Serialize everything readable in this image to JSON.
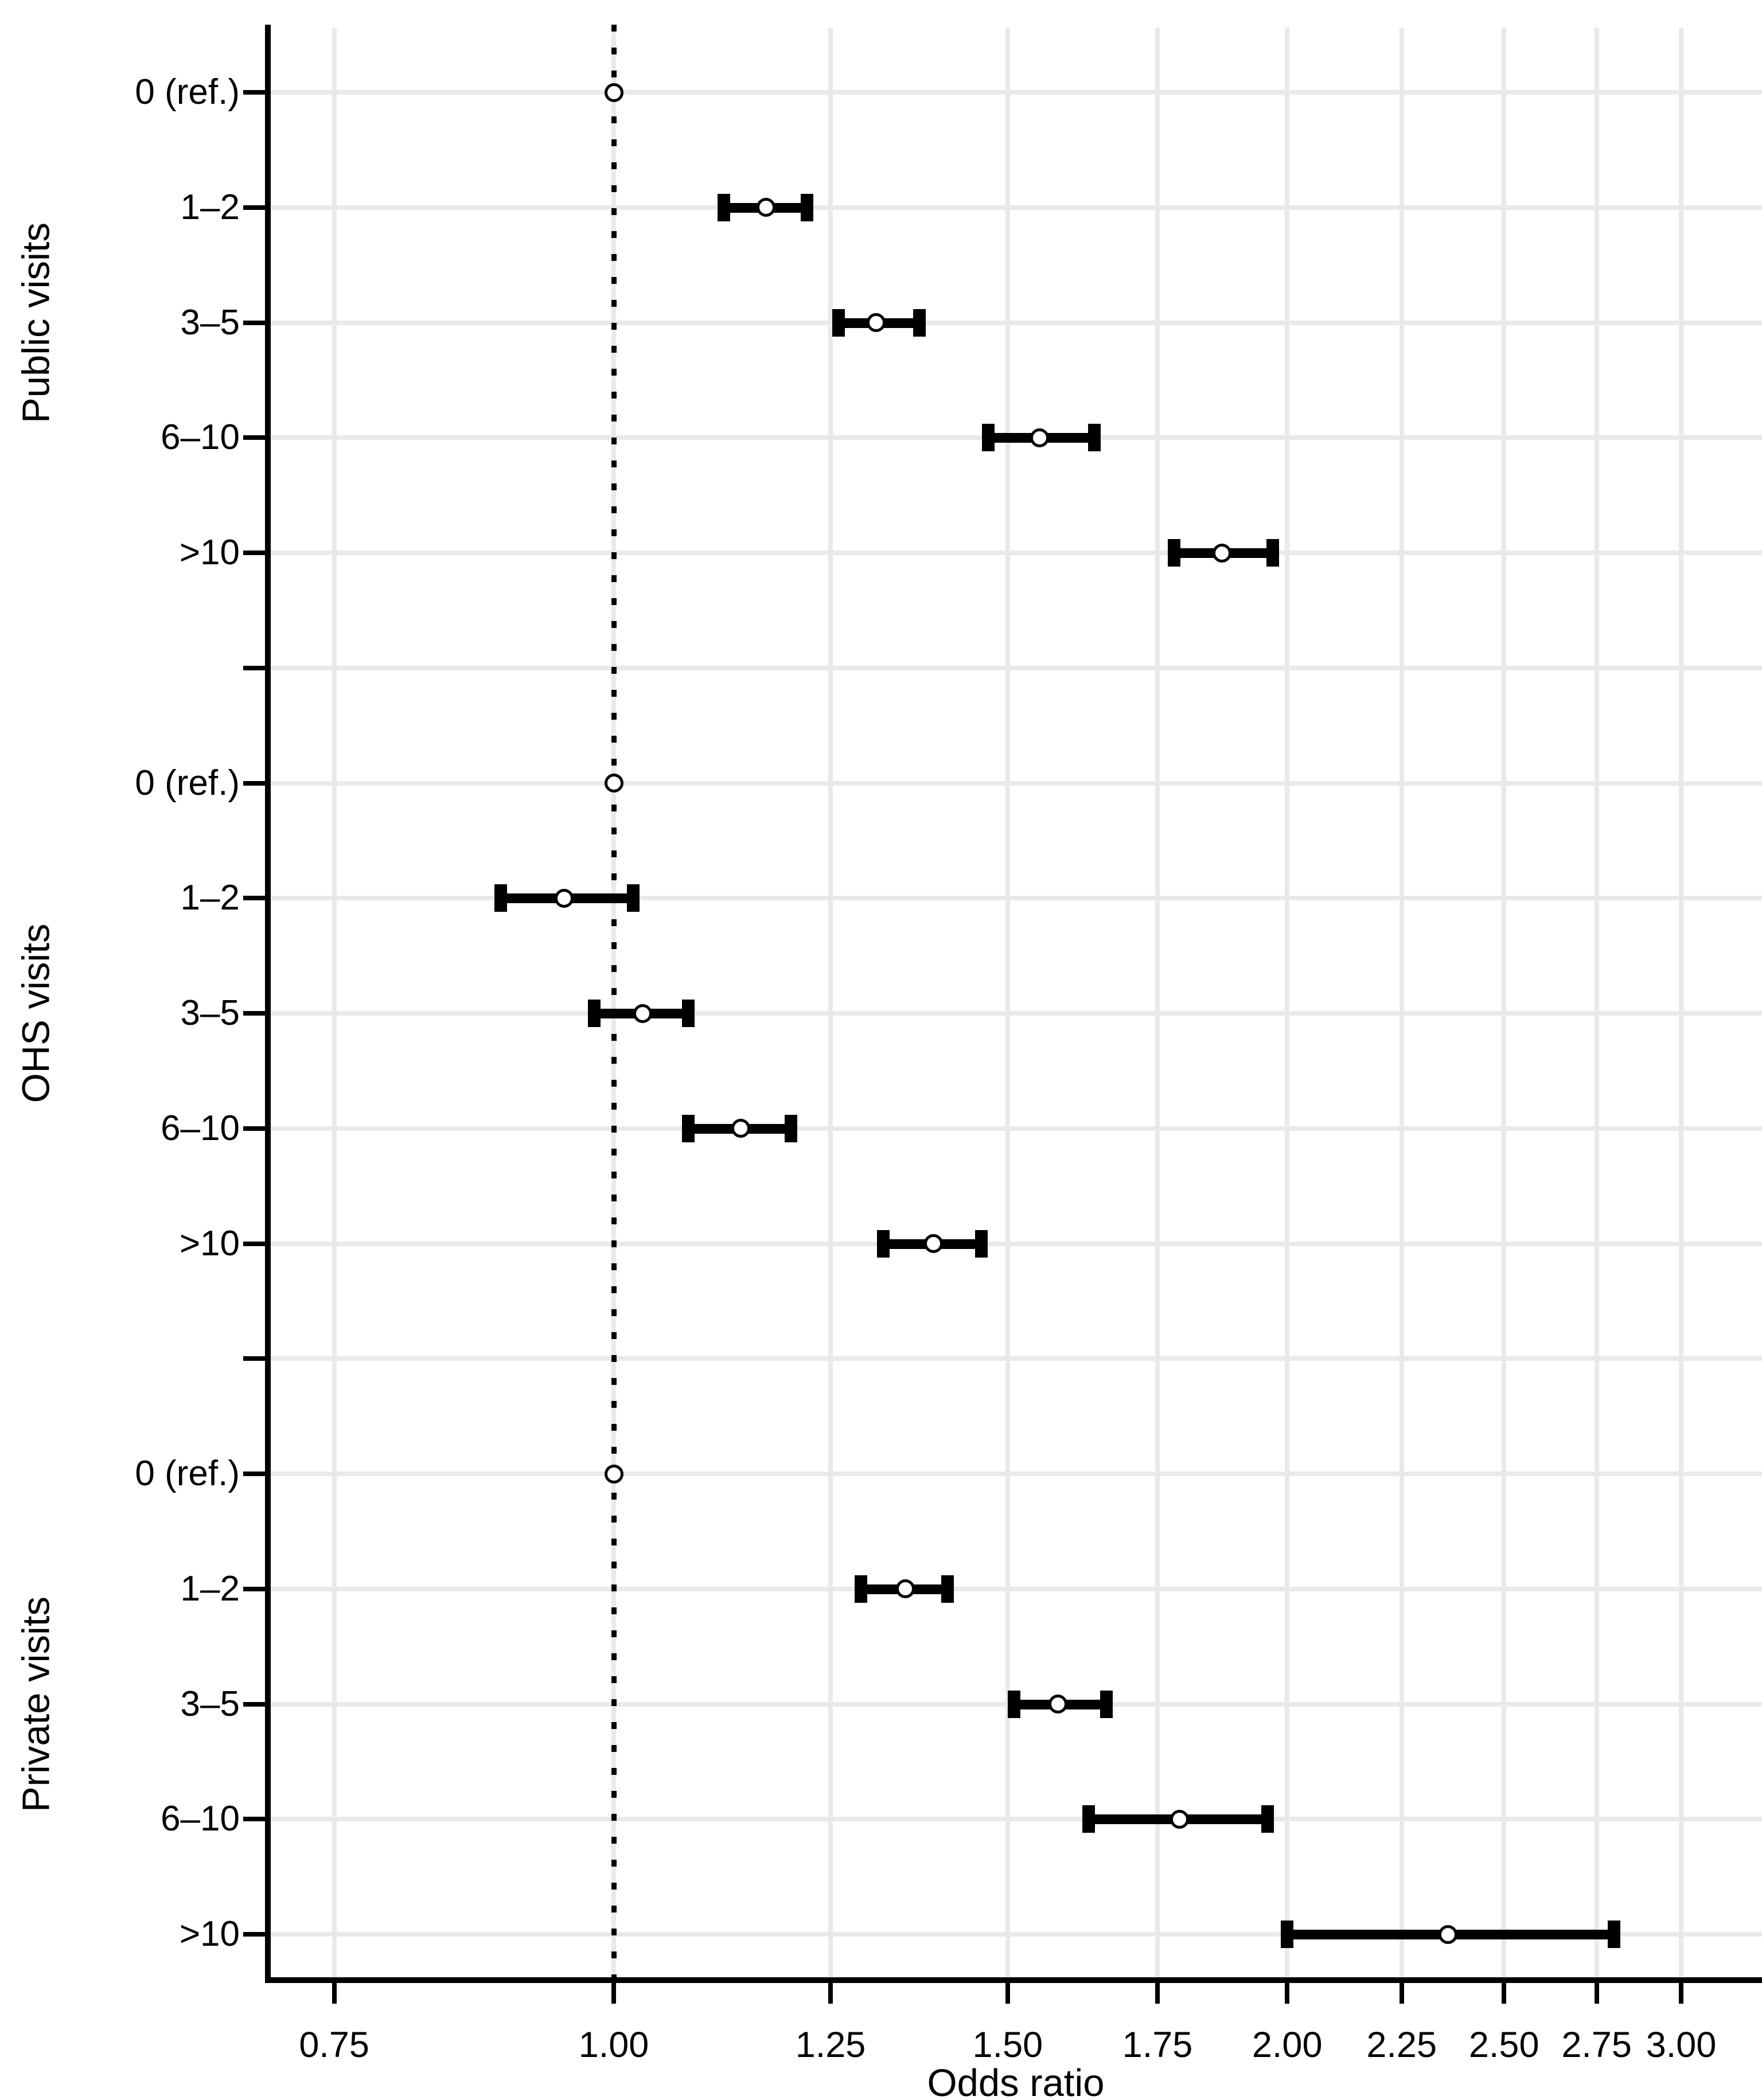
{
  "figure": {
    "title": "",
    "x_axis_title": "Odds ratio"
  },
  "chart_data": {
    "type": "scatter",
    "subtype": "forest-plot-errorbar",
    "title": "",
    "xlabel": "Odds ratio",
    "ylabel": "",
    "x_scale": "log",
    "xlim": [
      0.7,
      3.26
    ],
    "x_ticks": [
      0.75,
      1.0,
      1.25,
      1.5,
      1.75,
      2.0,
      2.25,
      2.5,
      2.75,
      3.0
    ],
    "x_tick_labels": [
      "0.75",
      "1.00",
      "1.25",
      "1.50",
      "1.75",
      "2.00",
      "2.25",
      "2.50",
      "2.75",
      "3.00"
    ],
    "grid": true,
    "legend": false,
    "reference_line_x": 1.0,
    "marker_style": "open-circle",
    "groups": [
      {
        "label": "Public visits",
        "rows": [
          {
            "category": "0 (ref.)",
            "or": 1.0,
            "ref": true
          },
          {
            "category": "1–2",
            "or": 1.17,
            "ci_low": 1.12,
            "ci_high": 1.22
          },
          {
            "category": "3–5",
            "or": 1.31,
            "ci_low": 1.26,
            "ci_high": 1.37
          },
          {
            "category": "6–10",
            "or": 1.55,
            "ci_low": 1.47,
            "ci_high": 1.64
          },
          {
            "category": ">10",
            "or": 1.87,
            "ci_low": 1.78,
            "ci_high": 1.97
          }
        ]
      },
      {
        "label": "OHS visits",
        "rows": [
          {
            "category": "0 (ref.)",
            "or": 1.0,
            "ref": true
          },
          {
            "category": "1–2",
            "or": 0.95,
            "ci_low": 0.89,
            "ci_high": 1.02
          },
          {
            "category": "3–5",
            "or": 1.03,
            "ci_low": 0.98,
            "ci_high": 1.08
          },
          {
            "category": "6–10",
            "or": 1.14,
            "ci_low": 1.08,
            "ci_high": 1.2
          },
          {
            "category": ">10",
            "or": 1.39,
            "ci_low": 1.32,
            "ci_high": 1.46
          }
        ]
      },
      {
        "label": "Private visits",
        "rows": [
          {
            "category": "0 (ref.)",
            "or": 1.0,
            "ref": true
          },
          {
            "category": "1–2",
            "or": 1.35,
            "ci_low": 1.29,
            "ci_high": 1.41
          },
          {
            "category": "3–5",
            "or": 1.58,
            "ci_low": 1.51,
            "ci_high": 1.66
          },
          {
            "category": "6–10",
            "or": 1.79,
            "ci_low": 1.63,
            "ci_high": 1.96
          },
          {
            "category": ">10",
            "or": 2.36,
            "ci_low": 2.0,
            "ci_high": 2.8
          }
        ]
      }
    ],
    "colors": {
      "marker": "#000000",
      "marker_fill": "#ffffff",
      "grid": "#e9e9e9",
      "axis": "#000000",
      "text": "#000000",
      "background": "#ffffff"
    }
  }
}
